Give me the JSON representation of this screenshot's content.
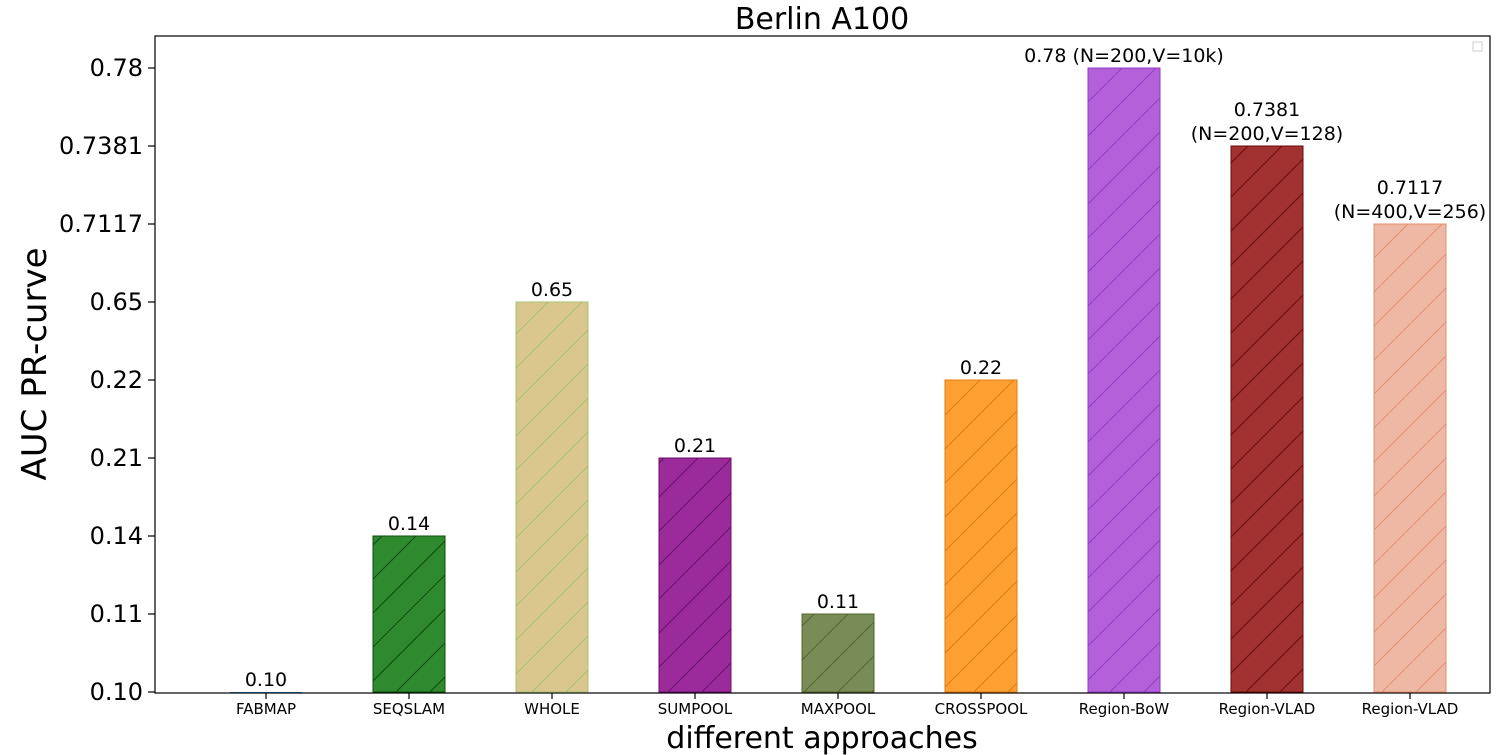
{
  "chart_data": {
    "type": "bar",
    "title": "Berlin A100",
    "xlabel": "different approaches",
    "ylabel": "AUC PR-curve",
    "y_scale": "categorical (ticks evenly spaced by rank, not by value)",
    "y_ticks": [
      "0.10",
      "0.11",
      "0.14",
      "0.21",
      "0.22",
      "0.65",
      "0.7117",
      "0.7381",
      "0.78"
    ],
    "categories": [
      "FABMAP",
      "SEQSLAM",
      "WHOLE",
      "SUMPOOL",
      "MAXPOOL",
      "CROSSPOOL",
      "Region-BoW",
      "Region-VLAD",
      "Region-VLAD"
    ],
    "values": [
      0.1,
      0.14,
      0.65,
      0.21,
      0.11,
      0.22,
      0.78,
      0.7381,
      0.7117
    ],
    "value_labels": [
      [
        "0.10"
      ],
      [
        "0.14"
      ],
      [
        "0.65"
      ],
      [
        "0.21"
      ],
      [
        "0.11"
      ],
      [
        "0.22"
      ],
      [
        "0.78 (N=200,V=10k)"
      ],
      [
        "0.7381",
        "(N=200,V=128)"
      ],
      [
        "0.7117",
        "(N=400,V=256)"
      ]
    ],
    "colors": [
      "#1f77b4",
      "#2f8a2f",
      "#d9c78f",
      "#9b2b9b",
      "#7a8c55",
      "#ffa033",
      "#b560db",
      "#a23232",
      "#eeb8a4"
    ],
    "hatch_colors": [
      "#1f77b4",
      "#0b4d0b",
      "#a8c070",
      "#6b0f6b",
      "#52662f",
      "#e07a10",
      "#8d3cc4",
      "#6a0a0a",
      "#e09070"
    ],
    "hatch": "diagonal",
    "grid": false,
    "legend": "top-right (empty)"
  }
}
